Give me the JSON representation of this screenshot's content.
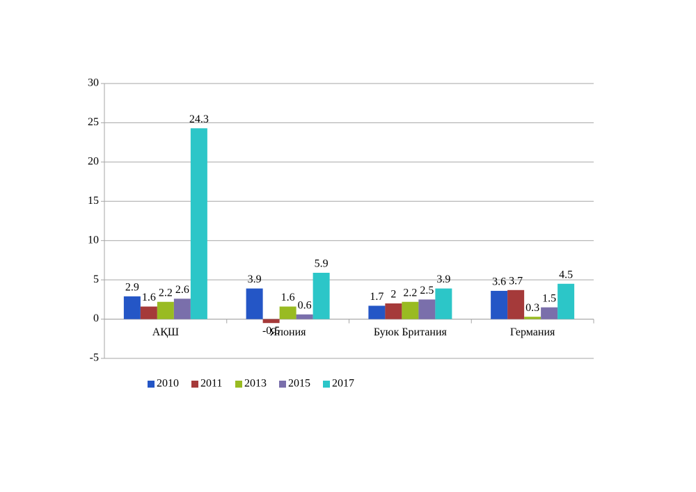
{
  "chart_data": {
    "type": "bar",
    "categories": [
      "АҚШ",
      "Япония",
      "Буюк Британия",
      "Германия"
    ],
    "series": [
      {
        "name": "2010",
        "color": "#2456c6",
        "values": [
          2.9,
          3.9,
          1.7,
          3.6
        ]
      },
      {
        "name": "2011",
        "color": "#a53a3a",
        "values": [
          1.6,
          -0.5,
          2,
          3.7
        ]
      },
      {
        "name": "2013",
        "color": "#99bb22",
        "values": [
          2.2,
          1.6,
          2.2,
          0.3
        ]
      },
      {
        "name": "2015",
        "color": "#7a6fab",
        "values": [
          2.6,
          0.6,
          2.5,
          1.5
        ]
      },
      {
        "name": "2017",
        "color": "#2cc6c8",
        "values": [
          24.3,
          5.9,
          3.9,
          4.5
        ]
      }
    ],
    "ylim": [
      -5,
      30
    ],
    "yticks": [
      -5,
      0,
      5,
      10,
      15,
      20,
      25,
      30
    ],
    "grid": true,
    "legend": "bottom"
  }
}
